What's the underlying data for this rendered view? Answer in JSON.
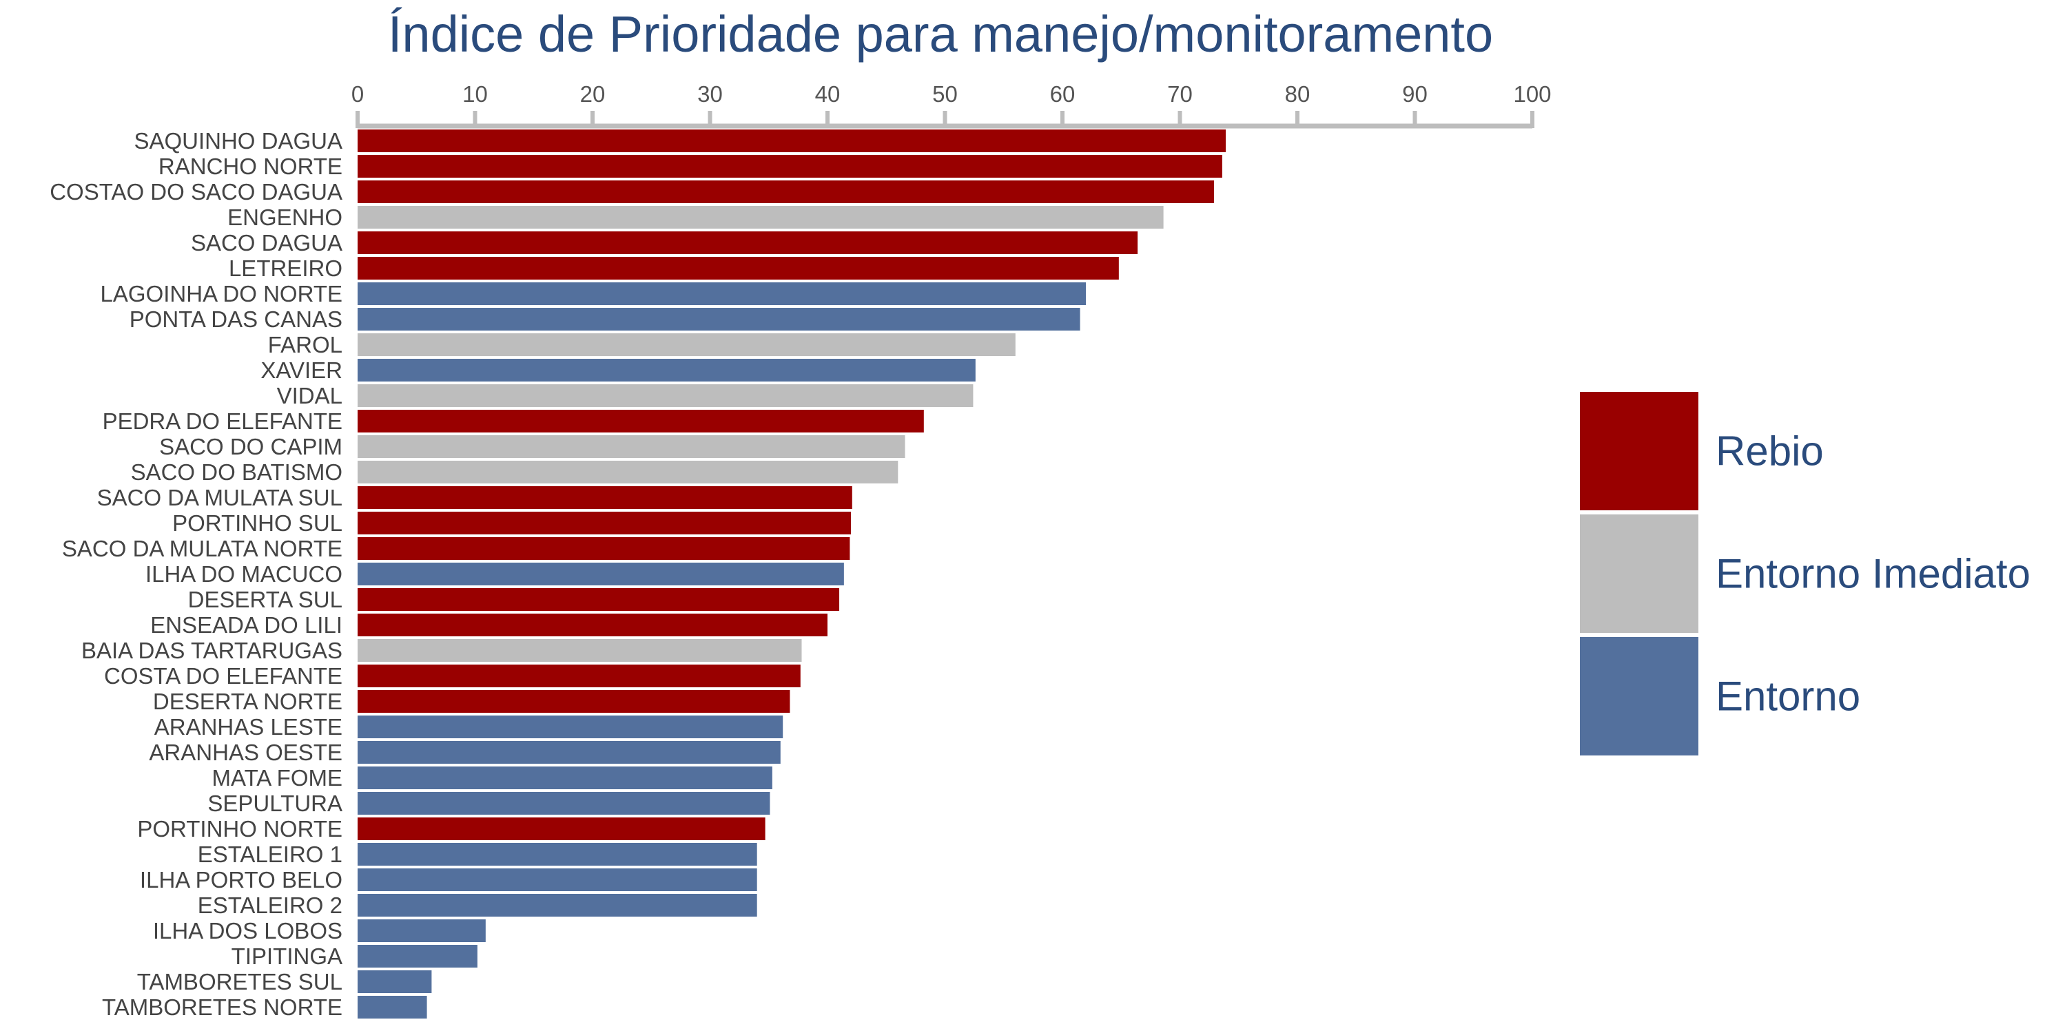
{
  "chart_data": {
    "type": "bar",
    "orientation": "horizontal",
    "title": "Índice de Prioridade para manejo/monitoramento",
    "xlabel": "",
    "ylabel": "",
    "xlim": [
      0,
      100
    ],
    "xticks": [
      "0",
      "10",
      "20",
      "30",
      "40",
      "50",
      "60",
      "70",
      "80",
      "90",
      "100"
    ],
    "axis_position": "top",
    "grid": false,
    "legend_position": "right",
    "legend": [
      {
        "key": "rebio",
        "label": "Rebio",
        "color": "#990000"
      },
      {
        "key": "imediato",
        "label": "Entorno Imediato",
        "color": "#bdbdbd"
      },
      {
        "key": "entorno",
        "label": "Entorno",
        "color": "#53709d"
      }
    ],
    "categories": [
      "SAQUINHO DAGUA",
      "RANCHO NORTE",
      "COSTAO DO SACO DAGUA",
      "ENGENHO",
      "SACO DAGUA",
      "LETREIRO",
      "LAGOINHA DO NORTE",
      "PONTA DAS CANAS",
      "FAROL",
      "XAVIER",
      "VIDAL",
      "PEDRA DO ELEFANTE",
      "SACO DO CAPIM",
      "SACO DO BATISMO",
      "SACO DA MULATA SUL",
      "PORTINHO SUL",
      "SACO DA MULATA NORTE",
      "ILHA DO MACUCO",
      "DESERTA SUL",
      "ENSEADA DO LILI",
      "BAIA DAS TARTARUGAS",
      "COSTA DO ELEFANTE",
      "DESERTA NORTE",
      "ARANHAS LESTE",
      "ARANHAS OESTE",
      "MATA FOME",
      "SEPULTURA",
      "PORTINHO NORTE",
      "ESTALEIRO 1",
      "ILHA PORTO BELO",
      "ESTALEIRO 2",
      "ILHA DOS LOBOS",
      "TIPITINGA",
      "TAMBORETES SUL",
      "TAMBORETES NORTE"
    ],
    "values": [
      73.9,
      73.6,
      72.9,
      68.6,
      66.4,
      64.8,
      62.0,
      61.5,
      56.0,
      52.6,
      52.4,
      48.2,
      46.6,
      46.0,
      42.1,
      42.0,
      41.9,
      41.4,
      41.0,
      40.0,
      37.8,
      37.7,
      36.8,
      36.2,
      36.0,
      35.3,
      35.1,
      34.7,
      34.0,
      34.0,
      34.0,
      10.9,
      10.2,
      6.3,
      5.9
    ],
    "groups": [
      "rebio",
      "rebio",
      "rebio",
      "imediato",
      "rebio",
      "rebio",
      "entorno",
      "entorno",
      "imediato",
      "entorno",
      "imediato",
      "rebio",
      "imediato",
      "imediato",
      "rebio",
      "rebio",
      "rebio",
      "entorno",
      "rebio",
      "rebio",
      "imediato",
      "rebio",
      "rebio",
      "entorno",
      "entorno",
      "entorno",
      "entorno",
      "rebio",
      "entorno",
      "entorno",
      "entorno",
      "entorno",
      "entorno",
      "entorno",
      "entorno"
    ],
    "colors": {
      "axis": "#bdbdbd"
    }
  }
}
